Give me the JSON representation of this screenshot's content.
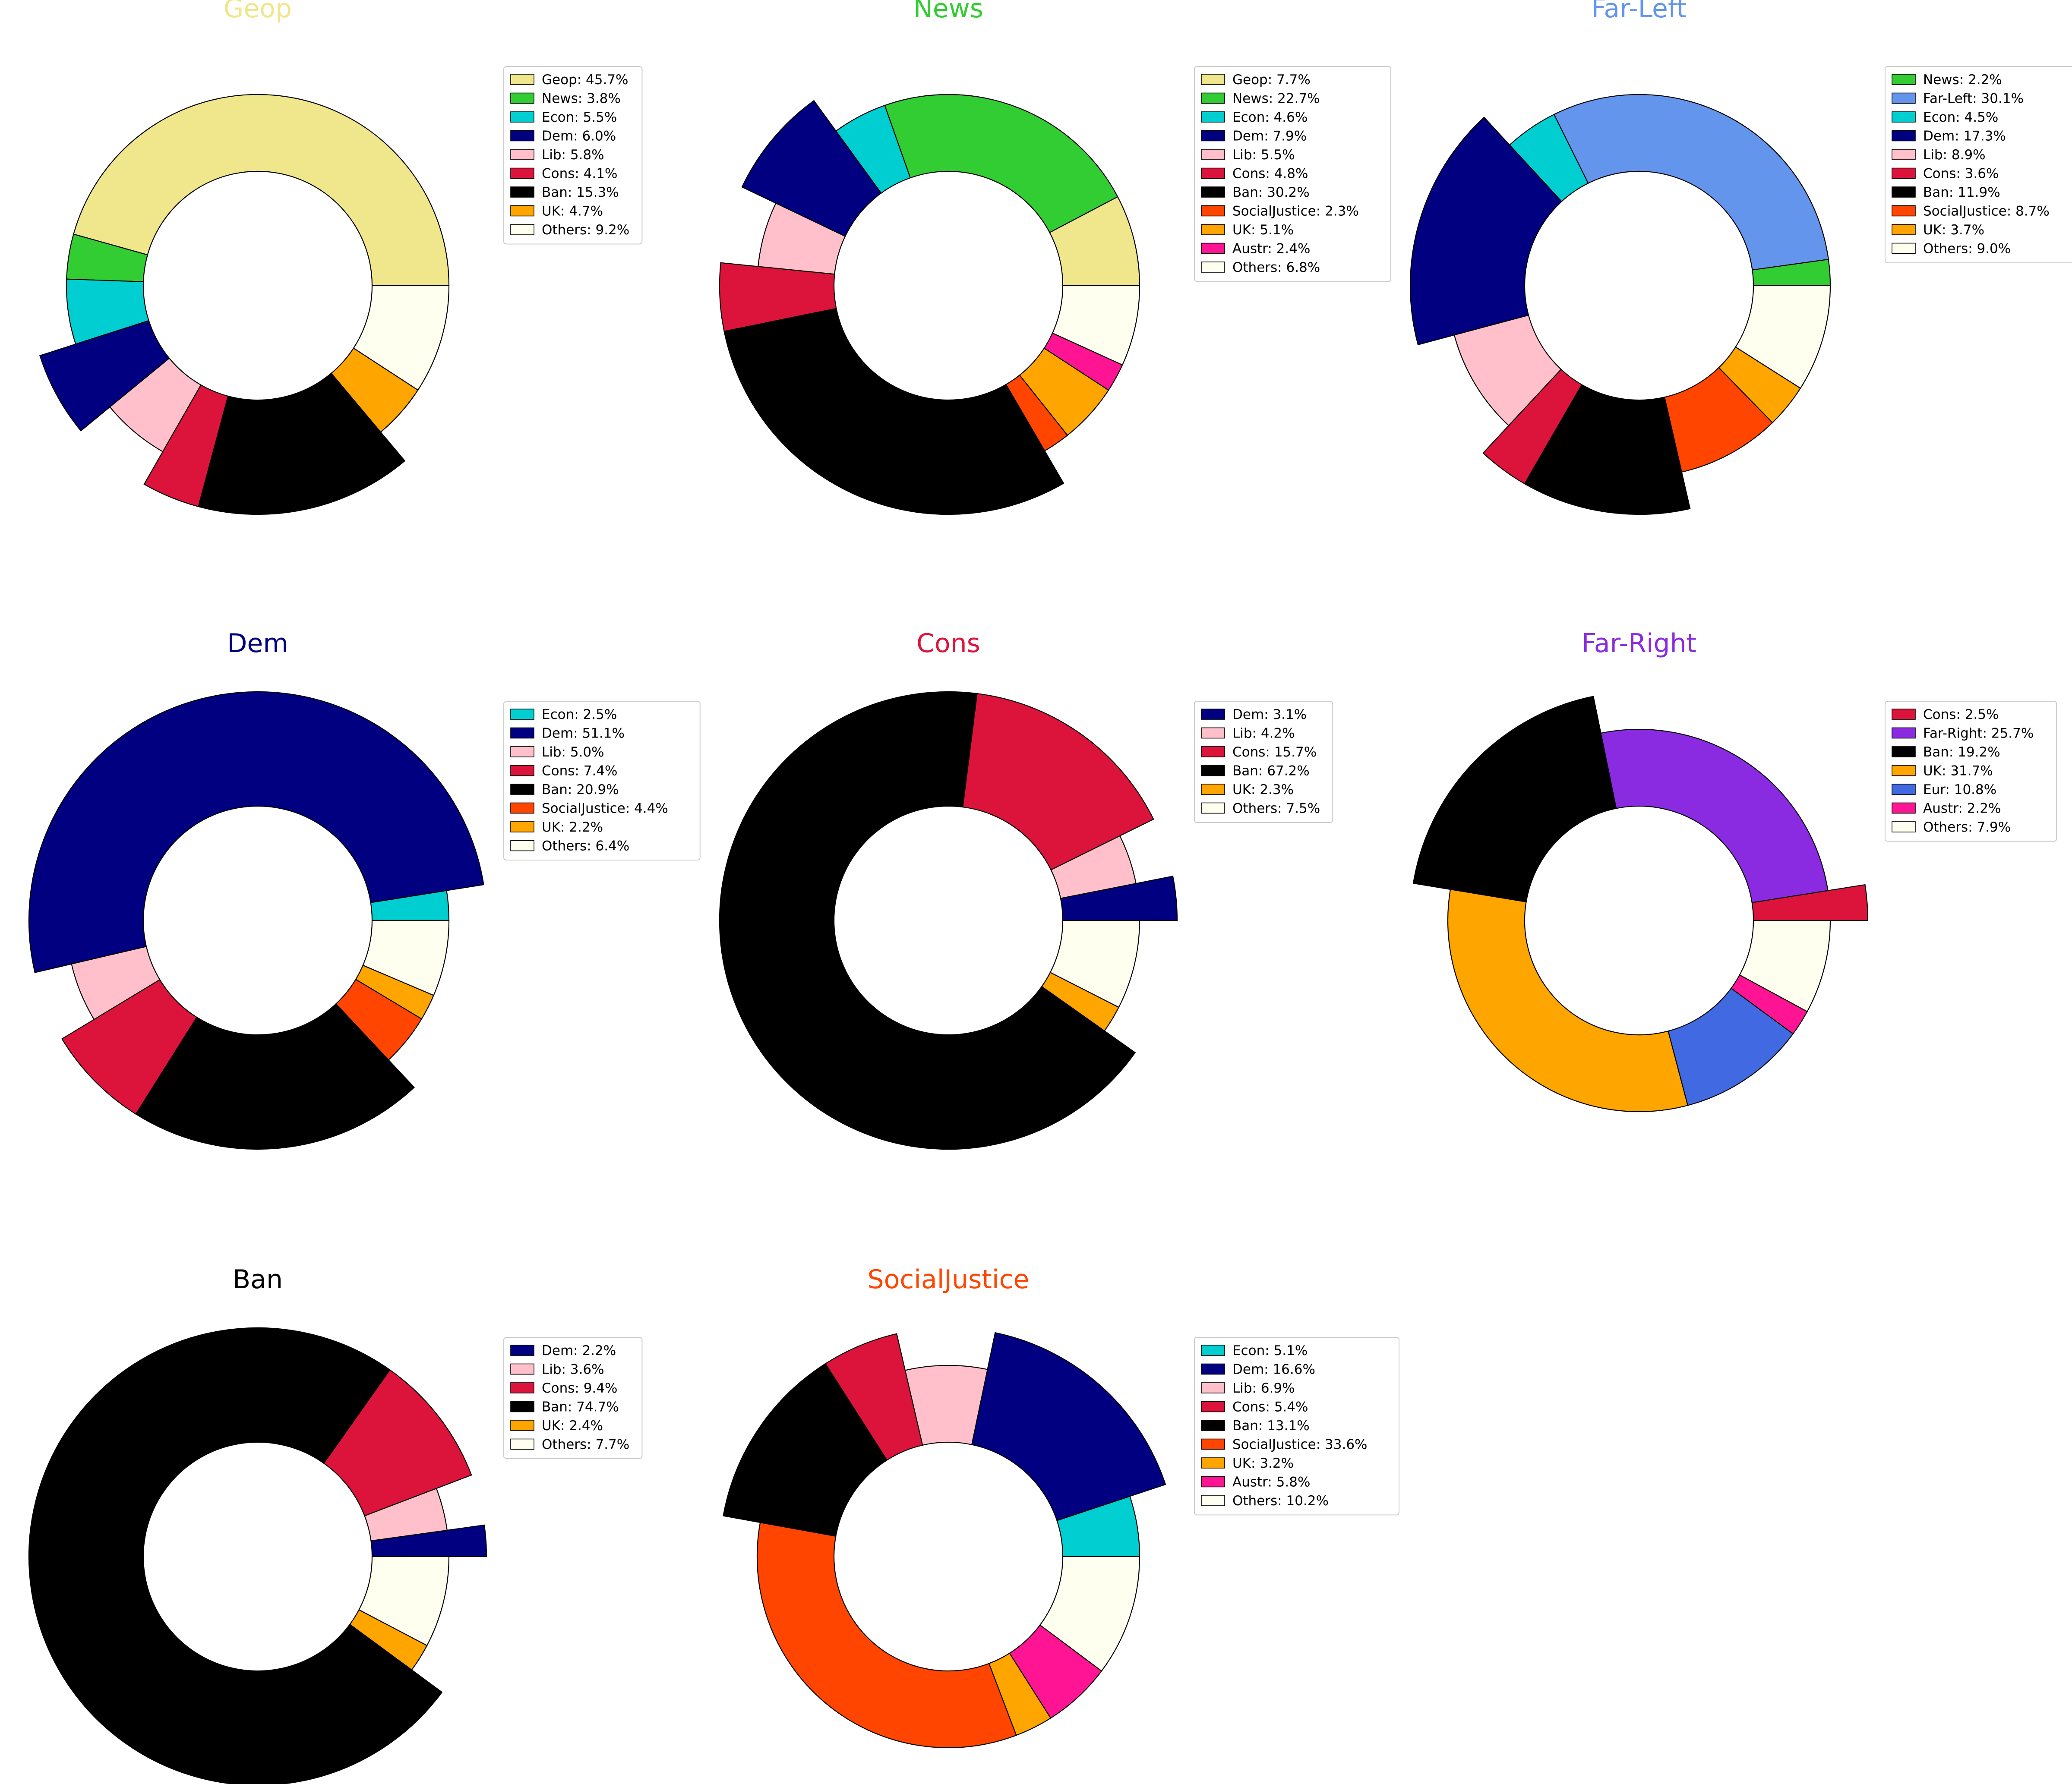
{
  "chart_data": [
    {
      "type": "pie",
      "title": "Geop",
      "title_color": "#f0e68c",
      "slices": [
        {
          "label": "Geop",
          "value": 45.7,
          "legend": "Geop: 45.7%",
          "color": "#f0e68c"
        },
        {
          "label": "News",
          "value": 3.8,
          "legend": "News: 3.8%",
          "color": "#32cd32"
        },
        {
          "label": "Econ",
          "value": 5.5,
          "legend": "Econ: 5.5%",
          "color": "#00ced1"
        },
        {
          "label": "Dem",
          "value": 6.0,
          "legend": "Dem: 6.0%",
          "color": "#000080",
          "exploded": true
        },
        {
          "label": "Lib",
          "value": 5.8,
          "legend": "Lib: 5.8%",
          "color": "#ffc0cb"
        },
        {
          "label": "Cons",
          "value": 4.1,
          "legend": "Cons: 4.1%",
          "color": "#dc143c",
          "exploded": true
        },
        {
          "label": "Ban",
          "value": 15.3,
          "legend": "Ban: 15.3%",
          "color": "#000000",
          "exploded": true
        },
        {
          "label": "UK",
          "value": 4.7,
          "legend": "UK: 4.7%",
          "color": "#ffa500"
        },
        {
          "label": "Others",
          "value": 9.2,
          "legend": "Others: 9.2%",
          "color": "#fffff0"
        }
      ]
    },
    {
      "type": "pie",
      "title": "News",
      "title_color": "#32cd32",
      "slices": [
        {
          "label": "Geop",
          "value": 7.7,
          "legend": "Geop: 7.7%",
          "color": "#f0e68c"
        },
        {
          "label": "News",
          "value": 22.7,
          "legend": "News: 22.7%",
          "color": "#32cd32"
        },
        {
          "label": "Econ",
          "value": 4.6,
          "legend": "Econ: 4.6%",
          "color": "#00ced1"
        },
        {
          "label": "Dem",
          "value": 7.9,
          "legend": "Dem: 7.9%",
          "color": "#000080",
          "exploded": true
        },
        {
          "label": "Lib",
          "value": 5.5,
          "legend": "Lib: 5.5%",
          "color": "#ffc0cb"
        },
        {
          "label": "Cons",
          "value": 4.8,
          "legend": "Cons: 4.8%",
          "color": "#dc143c",
          "exploded": true
        },
        {
          "label": "Ban",
          "value": 30.2,
          "legend": "Ban: 30.2%",
          "color": "#000000",
          "exploded": true
        },
        {
          "label": "SocialJustice",
          "value": 2.3,
          "legend": "SocialJustice: 2.3%",
          "color": "#ff4500"
        },
        {
          "label": "UK",
          "value": 5.1,
          "legend": "UK: 5.1%",
          "color": "#ffa500"
        },
        {
          "label": "Austr",
          "value": 2.4,
          "legend": "Austr: 2.4%",
          "color": "#ff1493"
        },
        {
          "label": "Others",
          "value": 6.8,
          "legend": "Others: 6.8%",
          "color": "#fffff0"
        }
      ]
    },
    {
      "type": "pie",
      "title": "Far-Left",
      "title_color": "#6495ed",
      "slices": [
        {
          "label": "News",
          "value": 2.2,
          "legend": "News: 2.2%",
          "color": "#32cd32"
        },
        {
          "label": "Far-Left",
          "value": 30.1,
          "legend": "Far-Left: 30.1%",
          "color": "#6495ed"
        },
        {
          "label": "Econ",
          "value": 4.5,
          "legend": "Econ: 4.5%",
          "color": "#00ced1"
        },
        {
          "label": "Dem",
          "value": 17.3,
          "legend": "Dem: 17.3%",
          "color": "#000080",
          "exploded": true
        },
        {
          "label": "Lib",
          "value": 8.9,
          "legend": "Lib: 8.9%",
          "color": "#ffc0cb"
        },
        {
          "label": "Cons",
          "value": 3.6,
          "legend": "Cons: 3.6%",
          "color": "#dc143c",
          "exploded": true
        },
        {
          "label": "Ban",
          "value": 11.9,
          "legend": "Ban: 11.9%",
          "color": "#000000",
          "exploded": true
        },
        {
          "label": "SocialJustice",
          "value": 8.7,
          "legend": "SocialJustice: 8.7%",
          "color": "#ff4500"
        },
        {
          "label": "UK",
          "value": 3.7,
          "legend": "UK: 3.7%",
          "color": "#ffa500"
        },
        {
          "label": "Others",
          "value": 9.0,
          "legend": "Others: 9.0%",
          "color": "#fffff0"
        }
      ]
    },
    {
      "type": "pie",
      "title": "Dem",
      "title_color": "#000080",
      "slices": [
        {
          "label": "Econ",
          "value": 2.5,
          "legend": "Econ: 2.5%",
          "color": "#00ced1"
        },
        {
          "label": "Dem",
          "value": 51.1,
          "legend": "Dem: 51.1%",
          "color": "#000080",
          "exploded": true
        },
        {
          "label": "Lib",
          "value": 5.0,
          "legend": "Lib: 5.0%",
          "color": "#ffc0cb"
        },
        {
          "label": "Cons",
          "value": 7.4,
          "legend": "Cons: 7.4%",
          "color": "#dc143c",
          "exploded": true
        },
        {
          "label": "Ban",
          "value": 20.9,
          "legend": "Ban: 20.9%",
          "color": "#000000",
          "exploded": true
        },
        {
          "label": "SocialJustice",
          "value": 4.4,
          "legend": "SocialJustice: 4.4%",
          "color": "#ff4500"
        },
        {
          "label": "UK",
          "value": 2.2,
          "legend": "UK: 2.2%",
          "color": "#ffa500"
        },
        {
          "label": "Others",
          "value": 6.4,
          "legend": "Others: 6.4%",
          "color": "#fffff0"
        }
      ]
    },
    {
      "type": "pie",
      "title": "Cons",
      "title_color": "#dc143c",
      "slices": [
        {
          "label": "Dem",
          "value": 3.1,
          "legend": "Dem: 3.1%",
          "color": "#000080",
          "exploded": true
        },
        {
          "label": "Lib",
          "value": 4.2,
          "legend": "Lib: 4.2%",
          "color": "#ffc0cb"
        },
        {
          "label": "Cons",
          "value": 15.7,
          "legend": "Cons: 15.7%",
          "color": "#dc143c",
          "exploded": true
        },
        {
          "label": "Ban",
          "value": 67.2,
          "legend": "Ban: 67.2%",
          "color": "#000000",
          "exploded": true
        },
        {
          "label": "UK",
          "value": 2.3,
          "legend": "UK: 2.3%",
          "color": "#ffa500"
        },
        {
          "label": "Others",
          "value": 7.5,
          "legend": "Others: 7.5%",
          "color": "#fffff0"
        }
      ]
    },
    {
      "type": "pie",
      "title": "Far-Right",
      "title_color": "#8a2be2",
      "slices": [
        {
          "label": "Cons",
          "value": 2.5,
          "legend": "Cons: 2.5%",
          "color": "#dc143c",
          "exploded": true
        },
        {
          "label": "Far-Right",
          "value": 25.7,
          "legend": "Far-Right: 25.7%",
          "color": "#8a2be2"
        },
        {
          "label": "Ban",
          "value": 19.2,
          "legend": "Ban: 19.2%",
          "color": "#000000",
          "exploded": true
        },
        {
          "label": "UK",
          "value": 31.7,
          "legend": "UK: 31.7%",
          "color": "#ffa500"
        },
        {
          "label": "Eur",
          "value": 10.8,
          "legend": "Eur: 10.8%",
          "color": "#4169e1"
        },
        {
          "label": "Austr",
          "value": 2.2,
          "legend": "Austr: 2.2%",
          "color": "#ff1493"
        },
        {
          "label": "Others",
          "value": 7.9,
          "legend": "Others: 7.9%",
          "color": "#fffff0"
        }
      ]
    },
    {
      "type": "pie",
      "title": "Ban",
      "title_color": "#000000",
      "slices": [
        {
          "label": "Dem",
          "value": 2.2,
          "legend": "Dem: 2.2%",
          "color": "#000080",
          "exploded": true
        },
        {
          "label": "Lib",
          "value": 3.6,
          "legend": "Lib: 3.6%",
          "color": "#ffc0cb"
        },
        {
          "label": "Cons",
          "value": 9.4,
          "legend": "Cons: 9.4%",
          "color": "#dc143c",
          "exploded": true
        },
        {
          "label": "Ban",
          "value": 74.7,
          "legend": "Ban: 74.7%",
          "color": "#000000",
          "exploded": true
        },
        {
          "label": "UK",
          "value": 2.4,
          "legend": "UK: 2.4%",
          "color": "#ffa500"
        },
        {
          "label": "Others",
          "value": 7.7,
          "legend": "Others: 7.7%",
          "color": "#fffff0"
        }
      ]
    },
    {
      "type": "pie",
      "title": "SocialJustice",
      "title_color": "#ff4500",
      "slices": [
        {
          "label": "Econ",
          "value": 5.1,
          "legend": "Econ: 5.1%",
          "color": "#00ced1"
        },
        {
          "label": "Dem",
          "value": 16.6,
          "legend": "Dem: 16.6%",
          "color": "#000080",
          "exploded": true
        },
        {
          "label": "Lib",
          "value": 6.9,
          "legend": "Lib: 6.9%",
          "color": "#ffc0cb"
        },
        {
          "label": "Cons",
          "value": 5.4,
          "legend": "Cons: 5.4%",
          "color": "#dc143c",
          "exploded": true
        },
        {
          "label": "Ban",
          "value": 13.1,
          "legend": "Ban: 13.1%",
          "color": "#000000",
          "exploded": true
        },
        {
          "label": "SocialJustice",
          "value": 33.6,
          "legend": "SocialJustice: 33.6%",
          "color": "#ff4500"
        },
        {
          "label": "UK",
          "value": 3.2,
          "legend": "UK: 3.2%",
          "color": "#ffa500"
        },
        {
          "label": "Austr",
          "value": 5.8,
          "legend": "Austr: 5.8%",
          "color": "#ff1493"
        },
        {
          "label": "Others",
          "value": 10.2,
          "legend": "Others: 10.2%",
          "color": "#fffff0"
        }
      ]
    }
  ]
}
